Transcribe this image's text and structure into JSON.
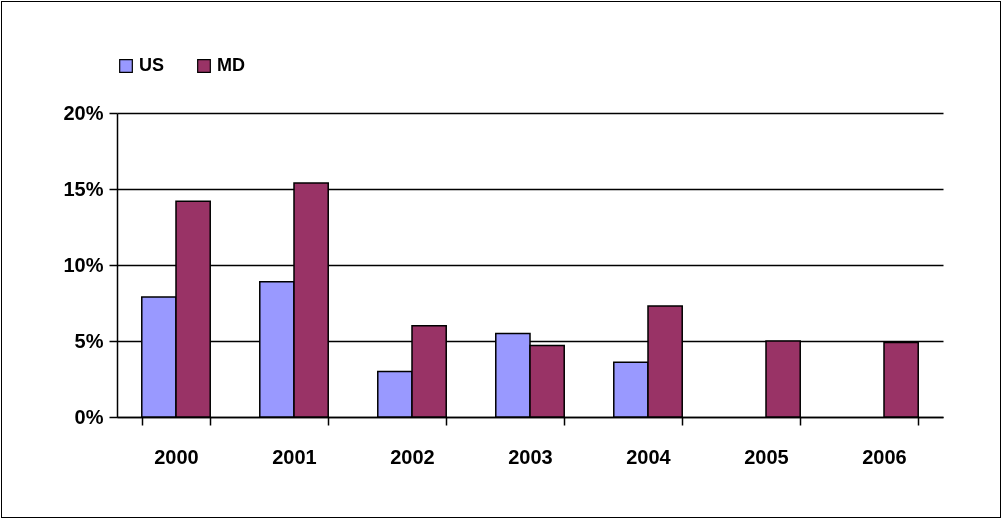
{
  "chart_data": {
    "type": "bar",
    "categories": [
      "2000",
      "2001",
      "2002",
      "2003",
      "2004",
      "2005",
      "2006"
    ],
    "series": [
      {
        "name": "US",
        "color": "#9999ff",
        "values": [
          7.9,
          8.9,
          3.0,
          5.5,
          3.6,
          null,
          null
        ]
      },
      {
        "name": "MD",
        "color": "#993366",
        "values": [
          14.2,
          15.4,
          6.0,
          4.7,
          7.3,
          5.0,
          4.9
        ]
      }
    ],
    "ylim": [
      0,
      20
    ],
    "yticks": [
      {
        "value": 0,
        "label": "0%"
      },
      {
        "value": 5,
        "label": "5%"
      },
      {
        "value": 10,
        "label": "10%"
      },
      {
        "value": 15,
        "label": "15%"
      },
      {
        "value": 20,
        "label": "20%"
      }
    ],
    "grid": "y",
    "legend": "top"
  }
}
